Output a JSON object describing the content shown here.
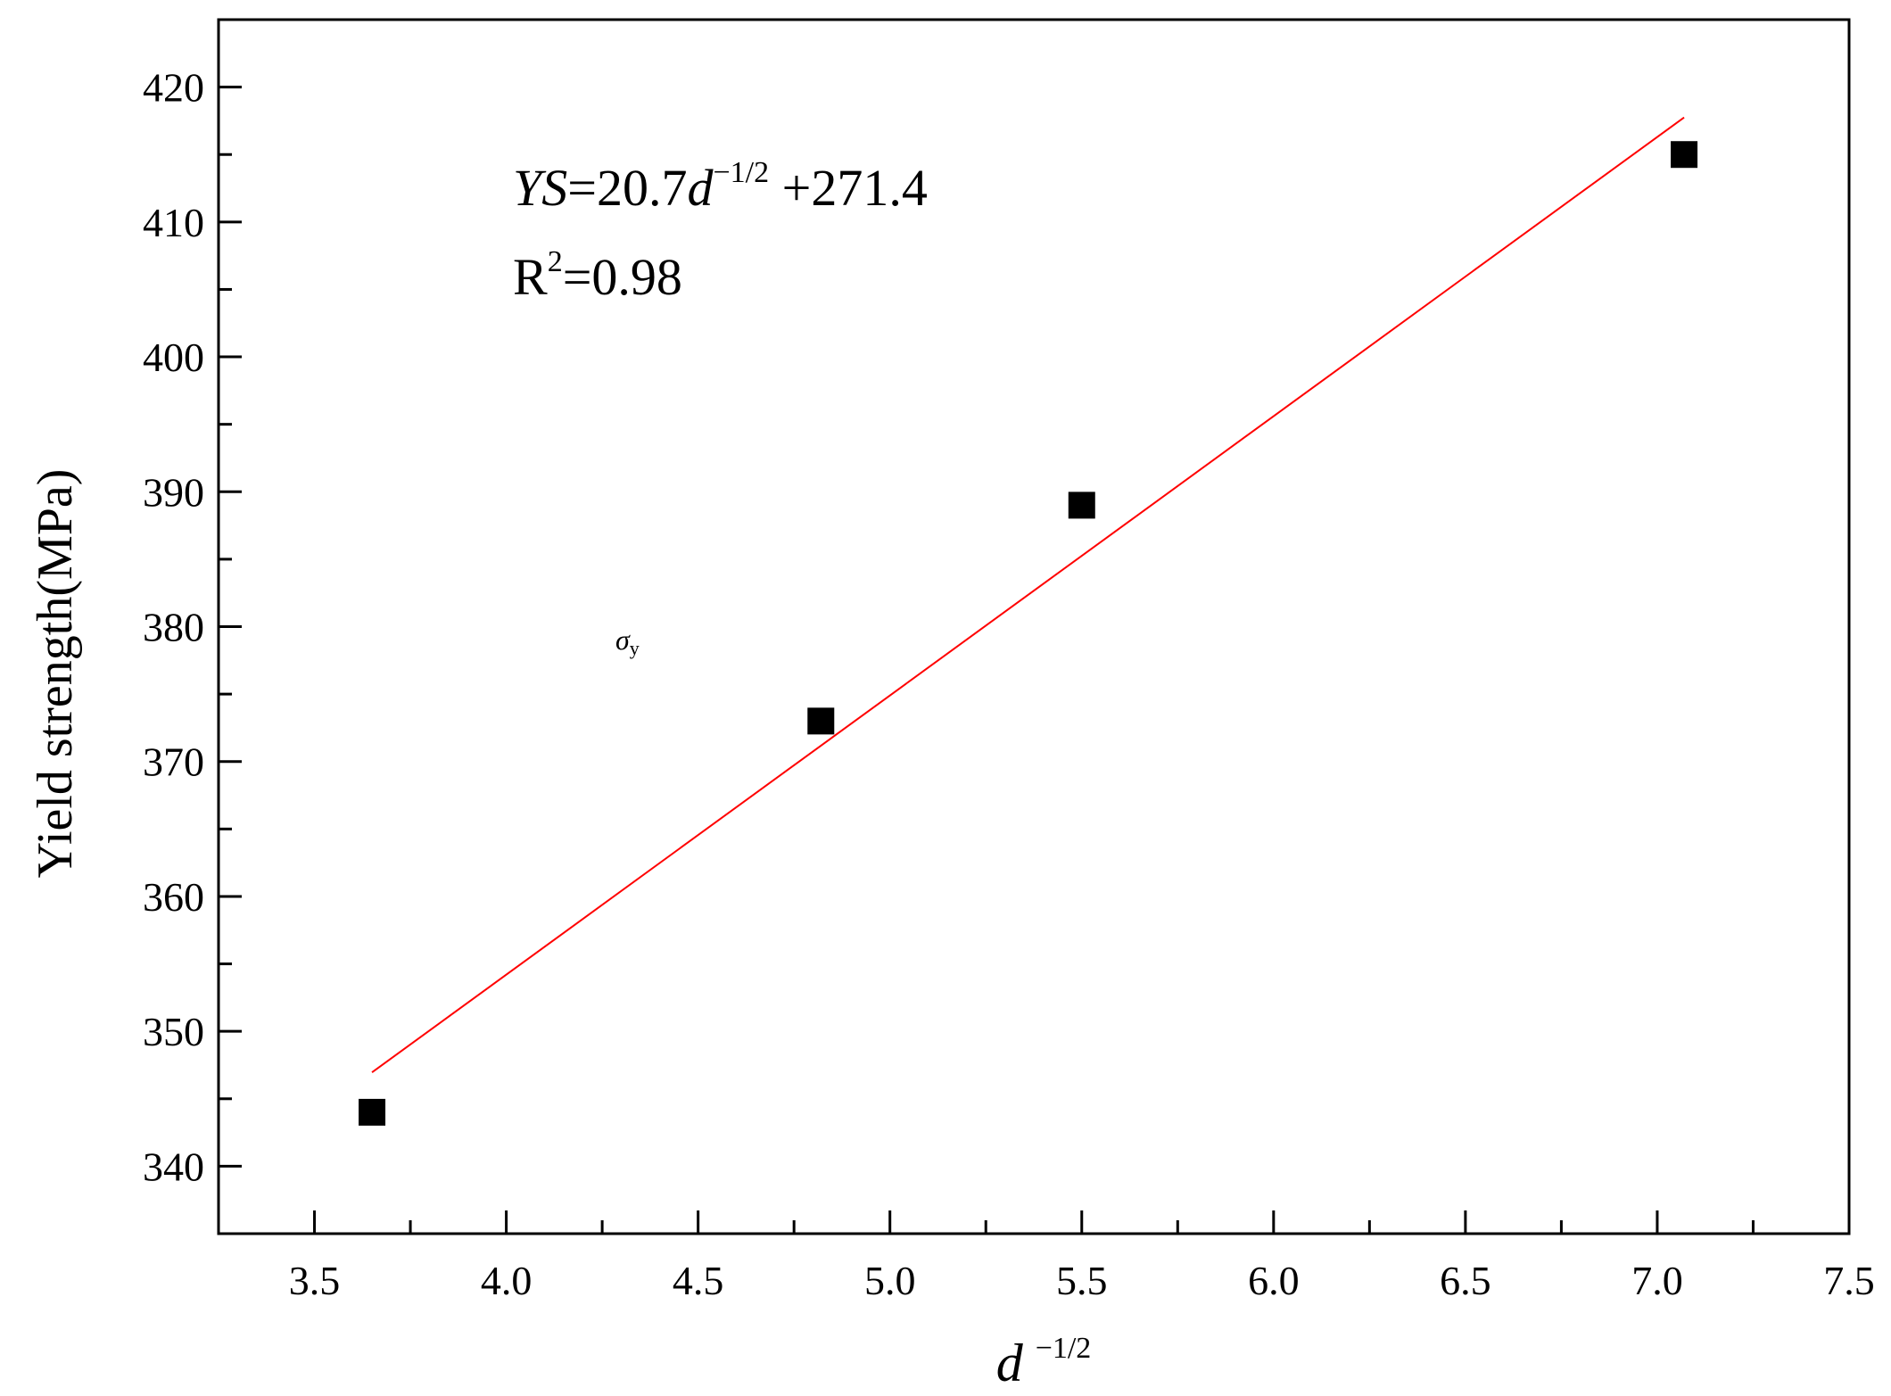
{
  "chart_data": {
    "type": "scatter",
    "xlabel": {
      "base": "d",
      "sup": "−1/2"
    },
    "ylabel": "Yield strength(MPa)",
    "xlim": [
      3.25,
      7.5
    ],
    "ylim": [
      335,
      425
    ],
    "x_ticks": [
      3.5,
      4.0,
      4.5,
      5.0,
      5.5,
      6.0,
      6.5,
      7.0,
      7.5
    ],
    "x_tick_labels": [
      "3.5",
      "4.0",
      "4.5",
      "5.0",
      "5.5",
      "6.0",
      "6.5",
      "7.0",
      "7.5"
    ],
    "y_ticks": [
      340,
      350,
      360,
      370,
      380,
      390,
      400,
      410,
      420
    ],
    "y_tick_labels": [
      "340",
      "350",
      "360",
      "370",
      "380",
      "390",
      "400",
      "410",
      "420"
    ],
    "grid": false,
    "legend": "none",
    "series": [
      {
        "marker": "square",
        "color": "#000000",
        "points": [
          {
            "x": 3.65,
            "y": 344
          },
          {
            "x": 4.82,
            "y": 373
          },
          {
            "x": 5.5,
            "y": 389
          },
          {
            "x": 7.07,
            "y": 415
          }
        ]
      }
    ],
    "fit_line": {
      "slope": 20.7,
      "intercept": 271.4,
      "x_range": [
        3.65,
        7.07
      ],
      "color": "#ff0000"
    },
    "annotations": {
      "equation": {
        "ys": "YS",
        "eq_coef": "=20.7",
        "d": "d",
        "exp": "−1/2",
        "intercept": " +271.4"
      },
      "r2": {
        "r": "R",
        "sup": "2",
        "value": "=0.98"
      },
      "sigma": {
        "base": "σ",
        "sub": "y"
      }
    }
  }
}
